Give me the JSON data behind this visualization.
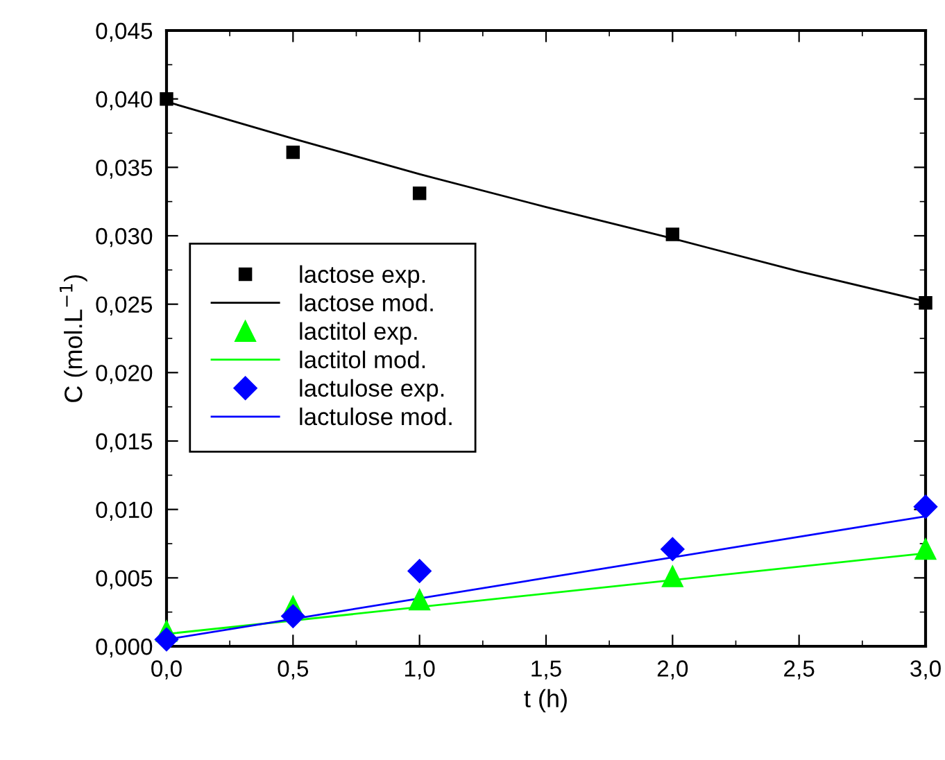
{
  "chart_data": {
    "type": "line",
    "xlabel": "t (h)",
    "ylabel": "C (mol.L$^{−1}$)",
    "xlim": [
      0,
      3
    ],
    "ylim": [
      0,
      0.045
    ],
    "xticks": [
      {
        "value": 0,
        "label": "0,0"
      },
      {
        "value": 0.5,
        "label": "0,5"
      },
      {
        "value": 1,
        "label": "1,0"
      },
      {
        "value": 1.5,
        "label": "1,5"
      },
      {
        "value": 2,
        "label": "2,0"
      },
      {
        "value": 2.5,
        "label": "2,5"
      },
      {
        "value": 3,
        "label": "3,0"
      }
    ],
    "yticks": [
      {
        "value": 0,
        "label": "0,000"
      },
      {
        "value": 0.005,
        "label": "0,005"
      },
      {
        "value": 0.01,
        "label": "0,010"
      },
      {
        "value": 0.015,
        "label": "0,015"
      },
      {
        "value": 0.02,
        "label": "0,020"
      },
      {
        "value": 0.025,
        "label": "0,025"
      },
      {
        "value": 0.03,
        "label": "0,030"
      },
      {
        "value": 0.035,
        "label": "0,035"
      },
      {
        "value": 0.04,
        "label": "0,040"
      },
      {
        "value": 0.045,
        "label": "0,045"
      }
    ],
    "grid": false,
    "legend": "left",
    "series": [
      {
        "name": "lactose exp.",
        "type": "scatter",
        "marker": "square",
        "color": "#000000",
        "x": [
          0,
          0.5,
          1,
          2,
          3
        ],
        "values": [
          0.04,
          0.0361,
          0.0331,
          0.0301,
          0.0251
        ]
      },
      {
        "name": "lactose mod.",
        "color": "#000000",
        "x": [
          0,
          0.5,
          1,
          1.5,
          2,
          2.5,
          3
        ],
        "values": [
          0.0398,
          0.0371,
          0.0345,
          0.0321,
          0.0298,
          0.0274,
          0.0252
        ]
      },
      {
        "name": "lactitol exp.",
        "type": "scatter",
        "marker": "triangle",
        "color": "#00ff00",
        "x": [
          0,
          0.5,
          1,
          2,
          3
        ],
        "values": [
          0.0011,
          0.0029,
          0.0034,
          0.0051,
          0.0071
        ]
      },
      {
        "name": "lactitol mod.",
        "color": "#00ff00",
        "x": [
          0,
          3
        ],
        "values": [
          0.0009,
          0.0068
        ]
      },
      {
        "name": "lactulose exp.",
        "type": "scatter",
        "marker": "diamond",
        "color": "#0000ff",
        "x": [
          0,
          0.5,
          1,
          2,
          3
        ],
        "values": [
          0.0005,
          0.0022,
          0.0055,
          0.0071,
          0.0102
        ]
      },
      {
        "name": "lactulose mod.",
        "color": "#0000ff",
        "x": [
          0,
          3
        ],
        "values": [
          0.0005,
          0.0095
        ]
      }
    ]
  }
}
